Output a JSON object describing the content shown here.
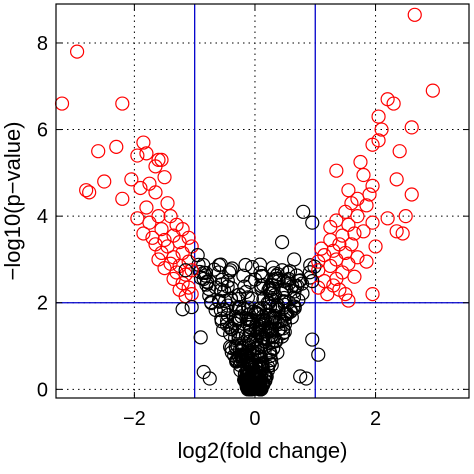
{
  "chart_data": {
    "type": "scatter",
    "xlabel": "log2(fold change)",
    "ylabel": "−log10(p−value)",
    "xlim": [
      -3.3,
      3.55
    ],
    "ylim": [
      -0.2,
      8.9
    ],
    "xticks": [
      -2,
      0,
      2
    ],
    "yticks": [
      0,
      2,
      4,
      6,
      8
    ],
    "xtick_labels": [
      "−2",
      "0",
      "2"
    ],
    "ytick_labels": [
      "0",
      "2",
      "4",
      "6",
      "8"
    ],
    "grid": "dotted",
    "marker": "open-circle",
    "colors": {
      "significant": "#ff0000",
      "nonsignificant": "#000000",
      "threshold": "#0000cc"
    },
    "thresholds": {
      "fold_change": [
        -1,
        1
      ],
      "p_value": 2
    },
    "series": [
      {
        "role": "significant",
        "color": "#ff0000",
        "points": [
          [
            -3.2,
            6.6
          ],
          [
            -2.95,
            7.8
          ],
          [
            -2.6,
            5.5
          ],
          [
            -2.3,
            5.6
          ],
          [
            -2.2,
            6.6
          ],
          [
            -2.8,
            4.6
          ],
          [
            -2.75,
            4.55
          ],
          [
            -2.5,
            4.8
          ],
          [
            -2.2,
            4.4
          ],
          [
            -2.05,
            4.85
          ],
          [
            -1.95,
            5.4
          ],
          [
            -1.85,
            5.7
          ],
          [
            -1.8,
            5.45
          ],
          [
            -1.65,
            5.15
          ],
          [
            -1.6,
            5.3
          ],
          [
            -1.55,
            5.3
          ],
          [
            -1.5,
            4.9
          ],
          [
            -1.75,
            4.75
          ],
          [
            -1.9,
            4.65
          ],
          [
            -1.65,
            4.55
          ],
          [
            -1.45,
            4.3
          ],
          [
            -1.8,
            4.2
          ],
          [
            -1.6,
            4.0
          ],
          [
            -1.4,
            4.0
          ],
          [
            -1.95,
            3.95
          ],
          [
            -1.75,
            3.85
          ],
          [
            -1.55,
            3.7
          ],
          [
            -1.3,
            3.8
          ],
          [
            -1.85,
            3.6
          ],
          [
            -1.7,
            3.5
          ],
          [
            -1.5,
            3.45
          ],
          [
            -1.35,
            3.55
          ],
          [
            -1.2,
            3.7
          ],
          [
            -1.65,
            3.35
          ],
          [
            -1.45,
            3.3
          ],
          [
            -1.25,
            3.4
          ],
          [
            -1.1,
            3.5
          ],
          [
            -1.55,
            3.15
          ],
          [
            -1.35,
            3.05
          ],
          [
            -1.2,
            3.15
          ],
          [
            -1.05,
            3.3
          ],
          [
            -1.6,
            3.0
          ],
          [
            -1.4,
            2.9
          ],
          [
            -1.25,
            2.85
          ],
          [
            -1.1,
            2.95
          ],
          [
            -1.5,
            2.8
          ],
          [
            -1.3,
            2.7
          ],
          [
            -1.15,
            2.65
          ],
          [
            -1.05,
            2.75
          ],
          [
            -1.35,
            2.55
          ],
          [
            -1.2,
            2.45
          ],
          [
            -1.1,
            2.35
          ],
          [
            -1.05,
            2.2
          ],
          [
            -1.25,
            2.3
          ],
          [
            -1.15,
            2.15
          ],
          [
            2.65,
            8.65
          ],
          [
            2.95,
            6.9
          ],
          [
            2.3,
            6.6
          ],
          [
            2.2,
            6.7
          ],
          [
            2.05,
            6.3
          ],
          [
            2.6,
            6.05
          ],
          [
            2.1,
            6.0
          ],
          [
            2.05,
            5.75
          ],
          [
            1.95,
            5.65
          ],
          [
            2.4,
            5.5
          ],
          [
            1.75,
            5.25
          ],
          [
            1.35,
            5.05
          ],
          [
            1.8,
            4.95
          ],
          [
            2.35,
            4.85
          ],
          [
            1.55,
            4.6
          ],
          [
            1.95,
            4.7
          ],
          [
            1.9,
            4.5
          ],
          [
            1.7,
            4.4
          ],
          [
            1.6,
            4.3
          ],
          [
            1.85,
            4.25
          ],
          [
            2.6,
            4.5
          ],
          [
            2.5,
            4.0
          ],
          [
            2.2,
            3.95
          ],
          [
            1.5,
            4.1
          ],
          [
            1.7,
            4.0
          ],
          [
            1.95,
            3.85
          ],
          [
            1.35,
            3.9
          ],
          [
            1.55,
            3.8
          ],
          [
            1.25,
            3.75
          ],
          [
            2.35,
            3.65
          ],
          [
            2.45,
            3.6
          ],
          [
            1.8,
            3.65
          ],
          [
            1.65,
            3.6
          ],
          [
            1.45,
            3.55
          ],
          [
            1.25,
            3.45
          ],
          [
            1.6,
            3.35
          ],
          [
            1.4,
            3.35
          ],
          [
            2.0,
            3.3
          ],
          [
            1.1,
            3.25
          ],
          [
            1.3,
            3.2
          ],
          [
            1.5,
            3.15
          ],
          [
            1.15,
            3.1
          ],
          [
            1.35,
            3.0
          ],
          [
            1.7,
            3.05
          ],
          [
            1.85,
            2.95
          ],
          [
            1.55,
            2.9
          ],
          [
            1.25,
            2.85
          ],
          [
            1.05,
            2.95
          ],
          [
            1.45,
            2.7
          ],
          [
            1.65,
            2.6
          ],
          [
            1.35,
            2.55
          ],
          [
            1.15,
            2.5
          ],
          [
            1.05,
            2.35
          ],
          [
            1.3,
            2.4
          ],
          [
            1.2,
            2.2
          ],
          [
            1.5,
            2.2
          ],
          [
            1.95,
            2.2
          ],
          [
            1.05,
            2.75
          ],
          [
            1.55,
            2.05
          ],
          [
            1.4,
            2.3
          ]
        ]
      },
      {
        "role": "nonsignificant",
        "color": "#000000",
        "points": [
          [
            0.8,
            4.1
          ],
          [
            0.95,
            3.85
          ],
          [
            0.45,
            3.4
          ],
          [
            -0.95,
            3.1
          ],
          [
            -1.15,
            2.75
          ],
          [
            -1.2,
            1.85
          ],
          [
            -1.05,
            1.9
          ],
          [
            0.95,
            1.15
          ],
          [
            1.05,
            0.8
          ],
          [
            0.85,
            0.25
          ],
          [
            0.75,
            0.3
          ],
          [
            -0.75,
            0.25
          ],
          [
            -0.85,
            0.4
          ],
          [
            -0.9,
            1.2
          ],
          [
            -0.85,
            2.55
          ],
          [
            0.95,
            2.5
          ],
          [
            0.65,
            3.0
          ],
          [
            0.45,
            2.75
          ],
          [
            -0.6,
            2.7
          ],
          [
            -0.45,
            2.5
          ]
        ]
      }
    ]
  }
}
